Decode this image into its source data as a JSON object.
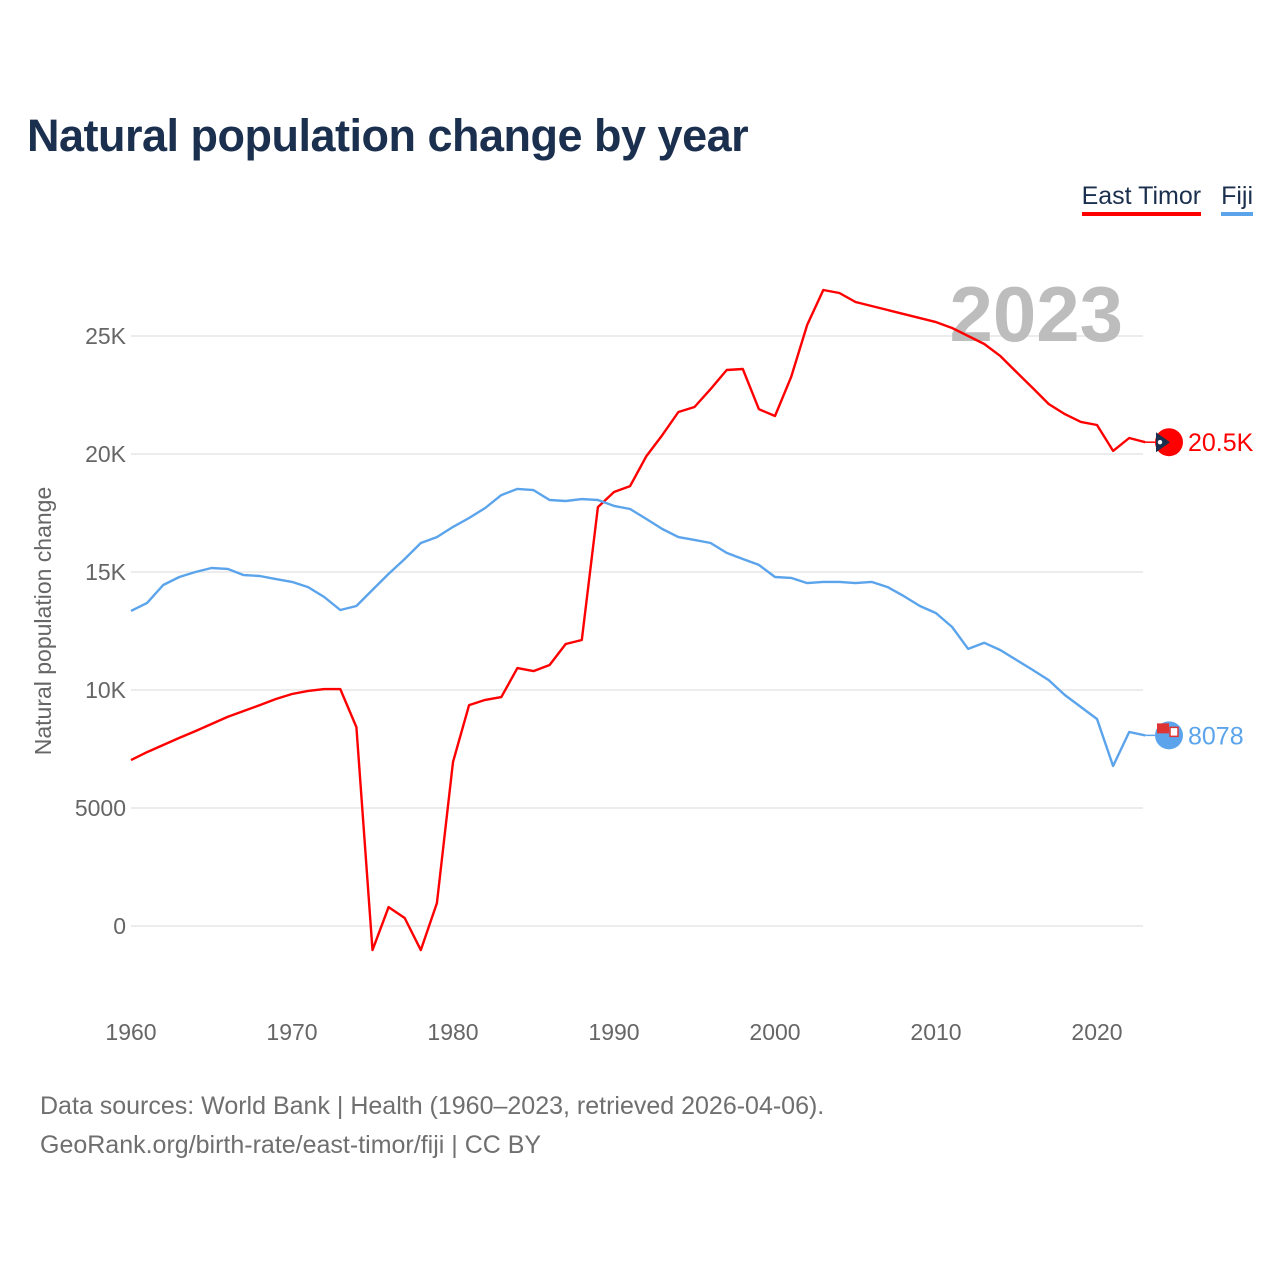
{
  "title": "Natural population change by year",
  "legend": [
    {
      "label": "East Timor",
      "color": "#ff0000"
    },
    {
      "label": "Fiji",
      "color": "#5ba4ec"
    }
  ],
  "footer": {
    "line1": "Data sources: World Bank | Health (1960–2023, retrieved 2026-04-06).",
    "line2": "GeoRank.org/birth-rate/east-timor/fiji | CC BY"
  },
  "chart_data": {
    "type": "line",
    "title": "Natural population change by year",
    "xlabel": "",
    "ylabel": "Natural population change",
    "year_label": "2023",
    "xlim": [
      1960,
      2023
    ],
    "ylim": [
      -2500,
      27500
    ],
    "xticks": [
      "1960",
      "1970",
      "1980",
      "1990",
      "2000",
      "2010",
      "2020"
    ],
    "yticks": [
      {
        "v": 0,
        "label": "0"
      },
      {
        "v": 5000,
        "label": "5000"
      },
      {
        "v": 10000,
        "label": "10K"
      },
      {
        "v": 15000,
        "label": "15K"
      },
      {
        "v": 20000,
        "label": "20K"
      },
      {
        "v": 25000,
        "label": "25K"
      }
    ],
    "grid": true,
    "x_start": 1960,
    "series": [
      {
        "name": "East Timor",
        "color": "#ff0000",
        "end_label": "20.5K",
        "flag": "east-timor-flag",
        "values": [
          7030,
          7370,
          7670,
          7970,
          8260,
          8560,
          8860,
          9110,
          9360,
          9620,
          9830,
          9960,
          10040,
          10040,
          8430,
          -1020,
          800,
          340,
          -1020,
          970,
          6950,
          9360,
          9580,
          9700,
          10930,
          10800,
          11060,
          11950,
          12120,
          17750,
          18390,
          18640,
          19900,
          20800,
          21780,
          21990,
          22750,
          23560,
          23600,
          21900,
          21610,
          23260,
          25470,
          26950,
          26820,
          26440,
          26270,
          26100,
          25930,
          25760,
          25590,
          25340,
          25000,
          24660,
          24150,
          23470,
          22800,
          22120,
          21690,
          21360,
          21230,
          20130,
          20680,
          20500
        ]
      },
      {
        "name": "Fiji",
        "color": "#5ba4ec",
        "end_label": "8078",
        "flag": "fiji-flag",
        "values": [
          13350,
          13690,
          14450,
          14790,
          15000,
          15170,
          15130,
          14870,
          14830,
          14700,
          14580,
          14360,
          13940,
          13390,
          13560,
          14240,
          14920,
          15550,
          16230,
          16480,
          16910,
          17290,
          17710,
          18260,
          18520,
          18470,
          18050,
          18010,
          18090,
          18050,
          17800,
          17670,
          17250,
          16820,
          16480,
          16360,
          16230,
          15810,
          15550,
          15300,
          14790,
          14750,
          14530,
          14580,
          14580,
          14530,
          14580,
          14360,
          13980,
          13560,
          13260,
          12670,
          11740,
          12000,
          11690,
          11270,
          10850,
          10420,
          9790,
          9280,
          8770,
          6780,
          8220,
          8078
        ]
      }
    ]
  }
}
